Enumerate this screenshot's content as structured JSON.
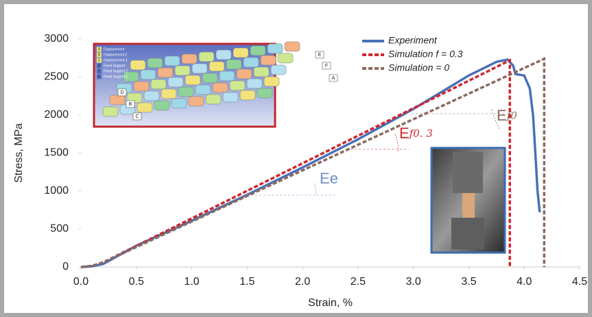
{
  "chart_data": {
    "type": "line",
    "x_label": "Strain, %",
    "y_label": "Stress, MPa",
    "xlim": [
      0,
      4.5
    ],
    "ylim": [
      0,
      3000
    ],
    "xticks": [
      {
        "value": 0,
        "label": "0.0"
      },
      0.5,
      {
        "value": 1,
        "label": "1.0"
      },
      1.5,
      {
        "value": 2,
        "label": "2.0"
      },
      2.5,
      {
        "value": 3,
        "label": "3.0"
      },
      3.5,
      {
        "value": 4,
        "label": "4.0"
      },
      4.5
    ],
    "yticks": [
      0,
      500,
      1000,
      1500,
      2000,
      2500,
      3000
    ],
    "grid": false,
    "legend": "upper right",
    "series": [
      {
        "name": "Experiment",
        "color": "#4a70b8",
        "dash": false,
        "x": [
          0,
          0.1,
          0.2,
          0.3,
          0.5,
          1.0,
          1.5,
          2.0,
          2.5,
          3.0,
          3.5,
          3.75,
          3.85,
          3.9,
          3.92,
          4.0,
          4.05,
          4.08,
          4.1,
          4.12,
          4.14
        ],
        "values": [
          0,
          10,
          40,
          120,
          280,
          610,
          950,
          1310,
          1680,
          2080,
          2520,
          2700,
          2730,
          2650,
          2540,
          2520,
          2350,
          2000,
          1500,
          1000,
          720
        ]
      },
      {
        "name": "Simulation f = 0.3",
        "color": "#d0262c",
        "dash": true,
        "x": [
          0,
          0.1,
          0.2,
          3.87,
          3.87
        ],
        "values": [
          0,
          15,
          60,
          2720,
          0
        ]
      },
      {
        "name": "Simulation = 0",
        "color": "#8a6a5e",
        "dash": true,
        "x": [
          0,
          0.1,
          0.2,
          4.18,
          4.18
        ],
        "values": [
          0,
          15,
          60,
          2740,
          0
        ]
      }
    ],
    "annotations": [
      {
        "text": "E",
        "subscript": "e",
        "color": "#6d8fcb"
      },
      {
        "text": "E",
        "subscript": "f0. 3",
        "color": "#d0262c"
      },
      {
        "text": "E",
        "subscript": "f0",
        "color": "#8a6a5e"
      }
    ],
    "inset": {
      "labels": [
        {
          "key": "A",
          "text": "Displacement"
        },
        {
          "key": "B",
          "text": "Displacement 2"
        },
        {
          "key": "C",
          "text": "Displacement 3"
        },
        {
          "key": "D",
          "text": "Fixed Support"
        },
        {
          "key": "E",
          "text": "Fixed Support 2"
        },
        {
          "key": "F",
          "text": "Fixed Support 3"
        }
      ],
      "callouts": [
        "E",
        "F",
        "A",
        "D",
        "B",
        "C"
      ]
    }
  }
}
